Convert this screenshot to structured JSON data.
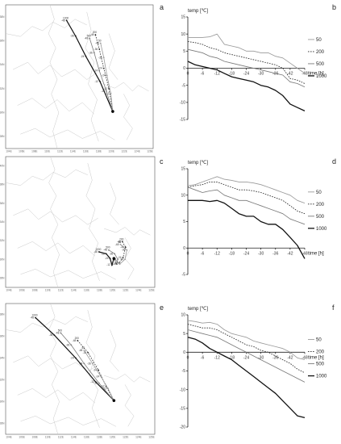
{
  "rows": [
    {
      "map": {
        "letter": "a",
        "lat_labels": [
          "38N",
          "36N",
          "34N",
          "32N",
          "30N",
          "28N"
        ],
        "lon_labels": [
          "104E",
          "106E",
          "108E",
          "110E",
          "112E",
          "114E",
          "116E",
          "118E",
          "120E",
          "122E",
          "124E",
          "126E"
        ],
        "trajectories": [
          {
            "height": "1000",
            "hours": [
              "-48",
              "-36",
              "-24",
              "-12"
            ],
            "points": [
              [
                113.0,
                37.7
              ],
              [
                114.4,
                36.4
              ],
              [
                116.0,
                34.7
              ],
              [
                118.2,
                32.6
              ],
              [
                120.2,
                30.1
              ]
            ]
          },
          {
            "height": "500",
            "hours": [
              "-48",
              "-36",
              "-24",
              "-12"
            ],
            "points": [
              [
                116.6,
                36.2
              ],
              [
                117.3,
                35.0
              ],
              [
                118.1,
                33.5
              ],
              [
                119.2,
                31.8
              ],
              [
                120.2,
                30.1
              ]
            ]
          },
          {
            "height": "200",
            "hours": [
              "-48",
              "-36",
              "-24",
              "-12"
            ],
            "points": [
              [
                117.5,
                36.5
              ],
              [
                118.1,
                35.3
              ],
              [
                118.8,
                33.7
              ],
              [
                119.6,
                32.0
              ],
              [
                120.2,
                30.1
              ]
            ]
          },
          {
            "height": "50",
            "hours": [
              "-48",
              "-36",
              "-24",
              "-12"
            ],
            "points": [
              [
                118.3,
                35.8
              ],
              [
                118.8,
                34.6
              ],
              [
                119.3,
                33.1
              ],
              [
                119.9,
                31.6
              ],
              [
                120.2,
                30.1
              ]
            ]
          }
        ]
      },
      "chart": {
        "letter": "b",
        "ylabel": "temp [℃]",
        "xlabel": "time [h]",
        "yticks": [
          "15",
          "10",
          "5",
          "0",
          "-5",
          "-10",
          "-15"
        ],
        "xticks": [
          "0",
          "-6",
          "-12",
          "-18",
          "-24",
          "-30",
          "-36",
          "-42",
          "-48"
        ]
      }
    },
    {
      "map": {
        "letter": "c",
        "lat_labels": [
          "40N",
          "38N",
          "36N",
          "34N",
          "32N",
          "30N",
          "28N"
        ],
        "lon_labels": [
          "104E",
          "106E",
          "108E",
          "110E",
          "112E",
          "114E",
          "116E",
          "118E",
          "120E",
          "122E",
          "124E",
          "126E"
        ],
        "trajectories": [
          {
            "height": "1000",
            "hours": [
              "-48",
              "-36",
              "-24",
              "-12"
            ],
            "points": [
              [
                117.9,
                30.8
              ],
              [
                119.0,
                30.6
              ],
              [
                119.6,
                30.1
              ],
              [
                119.9,
                29.4
              ],
              [
                120.2,
                30.1
              ]
            ]
          },
          {
            "height": "500",
            "hours": [
              "-48",
              "-36",
              "-24",
              "-12"
            ],
            "points": [
              [
                119.4,
                31.0
              ],
              [
                120.3,
                30.6
              ],
              [
                120.8,
                30.0
              ],
              [
                120.6,
                29.5
              ],
              [
                120.2,
                30.1
              ]
            ]
          },
          {
            "height": "200",
            "hours": [
              "-48",
              "-36",
              "-24",
              "-12"
            ],
            "points": [
              [
                121.5,
                31.9
              ],
              [
                122.0,
                31.3
              ],
              [
                121.6,
                30.2
              ],
              [
                121.0,
                29.6
              ],
              [
                120.2,
                30.1
              ]
            ]
          },
          {
            "height": "50",
            "hours": [
              "-48",
              "-36",
              "-24",
              "-12"
            ],
            "points": [
              [
                121.2,
                31.6
              ],
              [
                122.2,
                31.0
              ],
              [
                121.9,
                30.0
              ],
              [
                121.1,
                29.5
              ],
              [
                120.2,
                30.1
              ]
            ]
          }
        ]
      },
      "chart": {
        "letter": "d",
        "ylabel": "temp [℃]",
        "xlabel": "time [h]",
        "yticks": [
          "15",
          "10",
          "5",
          "0",
          "-5"
        ],
        "xticks": [
          "0",
          "-6",
          "-12",
          "-18",
          "-24",
          "-30",
          "-36",
          "-42",
          "-48"
        ]
      }
    },
    {
      "map": {
        "letter": "e",
        "lat_labels": [
          "38N",
          "36N",
          "34N",
          "32N",
          "30N",
          "28N"
        ],
        "lon_labels": [
          "104E",
          "106E",
          "108E",
          "110E",
          "112E",
          "114E",
          "116E",
          "118E",
          "120E",
          "122E",
          "124E",
          "126E"
        ],
        "trajectories": [
          {
            "height": "1000",
            "hours": [
              "-48",
              "-36",
              "-24",
              "-12"
            ],
            "points": [
              [
                108.1,
                37.7
              ],
              [
                111.0,
                36.1
              ],
              [
                114.3,
                34.0
              ],
              [
                117.4,
                31.8
              ],
              [
                120.2,
                30.1
              ]
            ]
          },
          {
            "height": "500",
            "hours": [
              "-48",
              "-36",
              "-24",
              "-12"
            ],
            "points": [
              [
                112.0,
                36.3
              ],
              [
                113.6,
                35.2
              ],
              [
                115.6,
                33.5
              ],
              [
                117.9,
                31.7
              ],
              [
                120.2,
                30.1
              ]
            ]
          },
          {
            "height": "200",
            "hours": [
              "-48",
              "-36",
              "-24",
              "-12"
            ],
            "points": [
              [
                114.6,
                35.6
              ],
              [
                116.2,
                34.5
              ],
              [
                117.8,
                32.9
              ],
              [
                119.0,
                31.4
              ],
              [
                120.2,
                30.1
              ]
            ]
          },
          {
            "height": "50",
            "hours": [
              "-48",
              "-36",
              "-24",
              "-12"
            ],
            "points": [
              [
                115.6,
                34.7
              ],
              [
                116.9,
                33.5
              ],
              [
                118.2,
                32.3
              ],
              [
                119.3,
                31.2
              ],
              [
                120.2,
                30.1
              ]
            ]
          }
        ]
      },
      "chart": {
        "letter": "f",
        "ylabel": "temp [℃]",
        "xlabel": "time [h]",
        "yticks": [
          "10",
          "5",
          "0",
          "-5",
          "-10",
          "-15",
          "-20"
        ],
        "xticks": [
          "0",
          "-6",
          "-12",
          "-18",
          "-24",
          "-30",
          "-36",
          "-42",
          "-48"
        ]
      }
    }
  ],
  "legend_labels": [
    "50",
    "200",
    "500",
    "1000"
  ],
  "series_styles": {
    "50": {
      "color": "#9a9a9a",
      "dash": "none"
    },
    "200": {
      "color": "#2a2a2a",
      "dash": "1.6,1.4"
    },
    "500": {
      "color": "#7a7a7a",
      "dash": "none"
    },
    "1000": {
      "color": "#111111",
      "dash": "none"
    }
  },
  "chart_data": [
    {
      "type": "line",
      "panel": "b",
      "x": [
        0,
        -3,
        -6,
        -9,
        -12,
        -15,
        -18,
        -21,
        -24,
        -27,
        -30,
        -33,
        -36,
        -39,
        -42,
        -45,
        -48
      ],
      "xlim": [
        0,
        -48
      ],
      "ylim": [
        -15,
        15
      ],
      "xlabel": "time [h]",
      "ylabel": "temp [℃]",
      "series": [
        {
          "name": "50",
          "values": [
            9.0,
            9.0,
            9.0,
            9.2,
            10.0,
            7.0,
            6.5,
            6.0,
            5.0,
            5.0,
            4.5,
            4.5,
            3.5,
            3.0,
            1.5,
            0.0,
            -1.5
          ]
        },
        {
          "name": "200",
          "values": [
            7.8,
            7.5,
            7.0,
            6.0,
            5.5,
            4.5,
            4.0,
            3.5,
            3.0,
            2.5,
            2.0,
            1.5,
            1.0,
            0.0,
            -3.0,
            -3.5,
            -4.5
          ]
        },
        {
          "name": "500",
          "values": [
            5.5,
            5.0,
            4.5,
            3.5,
            3.0,
            2.0,
            1.5,
            1.0,
            0.5,
            0.0,
            -0.5,
            -1.0,
            -1.5,
            -2.0,
            -4.0,
            -4.5,
            -5.5
          ]
        },
        {
          "name": "1000",
          "values": [
            2.0,
            1.0,
            0.5,
            0.0,
            -0.5,
            -1.5,
            -2.5,
            -3.0,
            -3.5,
            -4.0,
            -5.0,
            -5.5,
            -6.5,
            -8.0,
            -10.5,
            -11.5,
            -12.5
          ]
        }
      ],
      "legend": "right"
    },
    {
      "type": "line",
      "panel": "d",
      "x": [
        0,
        -3,
        -6,
        -9,
        -12,
        -15,
        -18,
        -21,
        -24,
        -27,
        -30,
        -33,
        -36,
        -39,
        -42,
        -45,
        -48
      ],
      "xlim": [
        0,
        -48
      ],
      "ylim": [
        -5,
        15
      ],
      "xlabel": "time [h]",
      "ylabel": "temp [℃]",
      "series": [
        {
          "name": "50",
          "values": [
            11.8,
            12.0,
            12.5,
            13.0,
            13.5,
            13.0,
            12.8,
            12.5,
            12.5,
            12.3,
            12.0,
            11.5,
            11.0,
            10.5,
            10.0,
            9.0,
            8.5
          ]
        },
        {
          "name": "200",
          "values": [
            11.5,
            11.8,
            12.0,
            12.5,
            12.5,
            12.0,
            11.5,
            11.0,
            11.0,
            10.8,
            10.5,
            10.0,
            9.5,
            9.0,
            8.0,
            7.0,
            6.5
          ]
        },
        {
          "name": "500",
          "values": [
            11.5,
            11.0,
            10.5,
            10.8,
            11.0,
            10.0,
            9.5,
            9.0,
            9.0,
            8.5,
            8.0,
            7.5,
            7.0,
            6.5,
            5.5,
            5.0,
            4.5
          ]
        },
        {
          "name": "1000",
          "values": [
            9.0,
            9.0,
            9.0,
            8.8,
            9.0,
            8.5,
            7.5,
            6.5,
            6.0,
            6.0,
            5.0,
            4.5,
            4.5,
            3.5,
            2.0,
            0.5,
            -2.0
          ]
        }
      ],
      "legend": "right"
    },
    {
      "type": "line",
      "panel": "f",
      "x": [
        0,
        -3,
        -6,
        -9,
        -12,
        -15,
        -18,
        -21,
        -24,
        -27,
        -30,
        -33,
        -36,
        -39,
        -42,
        -45,
        -48
      ],
      "xlim": [
        0,
        -48
      ],
      "ylim": [
        -20,
        10
      ],
      "xlabel": "time [h]",
      "ylabel": "temp [℃]",
      "series": [
        {
          "name": "50",
          "values": [
            8.5,
            8.2,
            7.8,
            8.0,
            7.5,
            6.0,
            5.0,
            4.5,
            4.0,
            3.0,
            2.5,
            2.0,
            1.5,
            1.0,
            0.0,
            -1.5,
            -2.0
          ]
        },
        {
          "name": "200",
          "values": [
            7.5,
            7.0,
            6.5,
            6.5,
            6.0,
            5.0,
            4.0,
            3.0,
            2.0,
            1.5,
            0.5,
            0.0,
            -1.0,
            -2.0,
            -3.0,
            -4.5,
            -5.5
          ]
        },
        {
          "name": "500",
          "values": [
            6.0,
            5.5,
            5.0,
            4.5,
            4.0,
            3.0,
            2.0,
            1.0,
            0.0,
            -1.0,
            -2.0,
            -3.0,
            -4.0,
            -5.0,
            -6.0,
            -7.0,
            -8.0
          ]
        },
        {
          "name": "1000",
          "values": [
            4.0,
            3.5,
            2.5,
            1.0,
            0.0,
            -1.0,
            -2.0,
            -3.5,
            -5.0,
            -6.5,
            -8.0,
            -9.5,
            -11.0,
            -13.0,
            -15.0,
            -17.0,
            -17.5
          ]
        }
      ],
      "legend": "right"
    }
  ]
}
